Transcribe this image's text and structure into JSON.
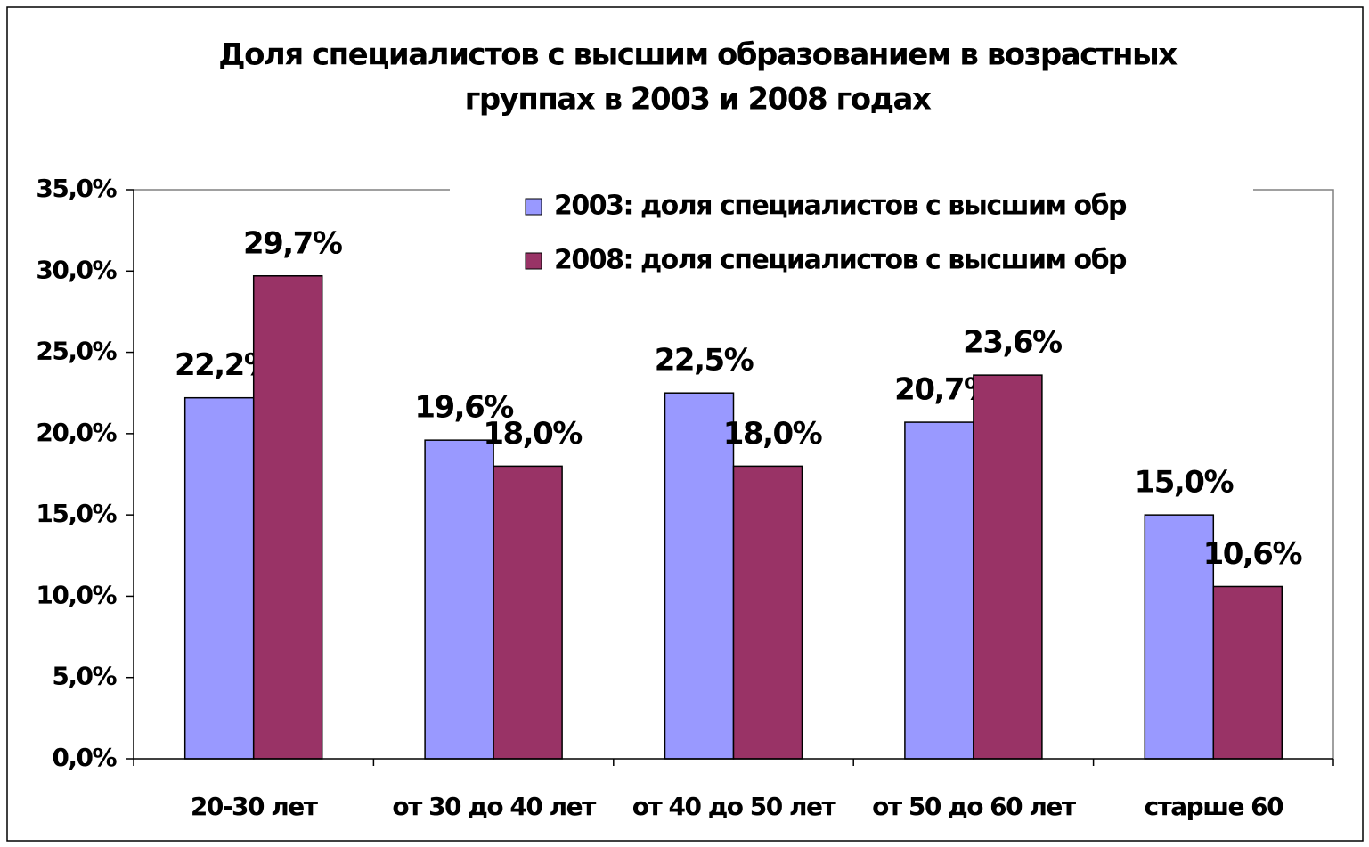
{
  "chart_data": {
    "type": "bar",
    "title": [
      "Доля специалистов с высшим образованием в возрастных",
      "группах в 2003 и 2008 годах"
    ],
    "categories": [
      "20-30 лет",
      "от 30 до 40 лет",
      "от 40 до 50 лет",
      "от 50 до 60 лет",
      "старше 60"
    ],
    "series": [
      {
        "name": "2003: доля специалистов с высшим обр",
        "color": "#9999ff",
        "values": [
          22.2,
          19.6,
          22.5,
          20.7,
          15.0
        ],
        "value_labels": [
          "22,2%",
          "19,6%",
          "22,5%",
          "20,7%",
          "15,0%"
        ]
      },
      {
        "name": "2008: доля специалистов с высшим обр",
        "color": "#993366",
        "values": [
          29.7,
          18.0,
          18.0,
          23.6,
          10.6
        ],
        "value_labels": [
          "29,7%",
          "18,0%",
          "18,0%",
          "23,6%",
          "10,6%"
        ]
      }
    ],
    "ylim": [
      0,
      35
    ],
    "yticks": [
      {
        "value": 0,
        "label": "0,0%"
      },
      {
        "value": 5,
        "label": "5,0%"
      },
      {
        "value": 10,
        "label": "10,0%"
      },
      {
        "value": 15,
        "label": "15,0%"
      },
      {
        "value": 20,
        "label": "20,0%"
      },
      {
        "value": 25,
        "label": "25,0%"
      },
      {
        "value": 30,
        "label": "30,0%"
      },
      {
        "value": 35,
        "label": "35,0%"
      }
    ],
    "legend": "top-right"
  }
}
